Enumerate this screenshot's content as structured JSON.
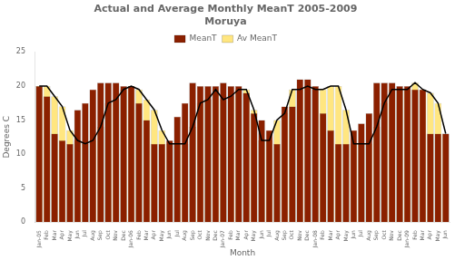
{
  "chart_data": {
    "type": "bar",
    "title": "Actual and Average Monthly MeanT 2005-2009\nMoruya",
    "xlabel": "Month",
    "ylabel": "Degrees C",
    "categories": [
      "Jan-05",
      "Feb",
      "Mar",
      "Apr",
      "May",
      "Jun",
      "Jul",
      "Aug",
      "Sep",
      "Oct",
      "Nov",
      "Dec",
      "Jan-06",
      "Feb",
      "Mar",
      "Apr",
      "May",
      "Jun",
      "Jul",
      "Aug",
      "Sep",
      "Oct",
      "Nov",
      "Dec",
      "Jan-07",
      "Feb",
      "Mar",
      "Apr",
      "May",
      "Jun",
      "Jul",
      "Aug",
      "Sep",
      "Oct",
      "Nov",
      "Dec",
      "Jan-08",
      "Feb",
      "Mar",
      "Apr",
      "May",
      "Jun",
      "Jul",
      "Aug",
      "Sep",
      "Oct",
      "Nov",
      "Dec",
      "Jan-09",
      "Feb",
      "Mar",
      "Apr",
      "May",
      "Jun"
    ],
    "series": [
      {
        "name": "Av MeanT",
        "type": "bar",
        "color": "#FFE680",
        "values": [
          20.0,
          20.0,
          18.5,
          17.0,
          13.5,
          12.0,
          11.5,
          12.0,
          14.0,
          17.5,
          18.0,
          19.5,
          20.0,
          19.5,
          18.0,
          16.5,
          13.5,
          11.5,
          11.5,
          11.5,
          14.0,
          17.5,
          18.0,
          19.5,
          18.0,
          18.5,
          19.5,
          19.5,
          16.5,
          12.0,
          12.0,
          15.0,
          16.0,
          19.5,
          19.5,
          20.0,
          19.5,
          19.5,
          20.0,
          20.0,
          16.5,
          11.5,
          11.5,
          11.5,
          14.0,
          17.5,
          19.5,
          19.5,
          19.5,
          20.5,
          19.5,
          19.0,
          17.5,
          13.0
        ]
      },
      {
        "name": "MeanT",
        "type": "bar",
        "color": "#8B2000",
        "values": [
          20.0,
          18.5,
          13.0,
          12.0,
          11.5,
          16.5,
          17.5,
          19.5,
          20.5,
          20.5,
          20.5,
          20.0,
          20.0,
          17.5,
          15.0,
          11.5,
          11.5,
          12.0,
          15.5,
          17.5,
          20.5,
          20.0,
          20.0,
          20.0,
          20.5,
          20.0,
          20.0,
          19.0,
          16.0,
          15.0,
          13.5,
          11.5,
          17.0,
          17.0,
          21.0,
          21.0,
          20.0,
          16.0,
          13.5,
          11.5,
          11.5,
          13.5,
          14.5,
          16.0,
          20.5,
          20.5,
          20.5,
          20.0,
          20.0,
          19.5,
          19.5,
          13.0,
          13.0,
          13.0
        ]
      },
      {
        "type": "line",
        "color": "#000000",
        "values": [
          20.0,
          20.0,
          18.5,
          17.0,
          13.5,
          12.0,
          11.5,
          12.0,
          14.0,
          17.5,
          18.0,
          19.5,
          20.0,
          19.5,
          18.0,
          16.5,
          13.5,
          11.5,
          11.5,
          11.5,
          14.0,
          17.5,
          18.0,
          19.5,
          18.0,
          18.5,
          19.5,
          19.5,
          16.5,
          12.0,
          12.0,
          15.0,
          16.0,
          19.5,
          19.5,
          20.0,
          19.5,
          19.5,
          20.0,
          20.0,
          16.5,
          11.5,
          11.5,
          11.5,
          14.0,
          17.5,
          19.5,
          19.5,
          19.5,
          20.5,
          19.5,
          19.0,
          17.5,
          13.0
        ]
      }
    ],
    "ylim": [
      0,
      25
    ],
    "yticks": [
      0,
      5,
      10,
      15,
      20,
      25
    ],
    "grid": false,
    "legend": "top"
  }
}
